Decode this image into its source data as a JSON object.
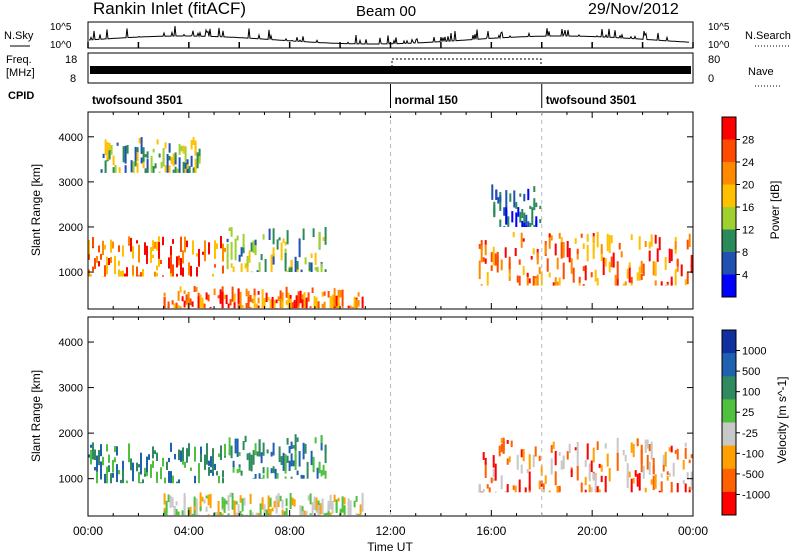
{
  "header": {
    "station": "Rankin Inlet (fitACF)",
    "beam": "Beam 00",
    "date": "29/Nov/2012"
  },
  "time_axis": {
    "label": "Time UT",
    "ticks": [
      "00:00",
      "04:00",
      "08:00",
      "12:00",
      "16:00",
      "20:00",
      "00:00"
    ],
    "range_hours": [
      0,
      24
    ]
  },
  "top_panels": {
    "nsky_label": "N.Sky",
    "nsky_ticks": [
      "10^5",
      "10^0"
    ],
    "nsearch_label": "N.Search",
    "nsearch_ticks": [
      "10^5",
      "10^0"
    ],
    "freq_label_line1": "Freq.",
    "freq_label_line2": "[MHz]",
    "freq_ticks": [
      "18",
      "8"
    ],
    "nave_label": "Nave",
    "nave_ticks": [
      "80",
      "0"
    ],
    "cpid_label": "CPID",
    "cpid_segments": [
      {
        "label": "twofsound 3501",
        "start_hour": 0,
        "end_hour": 12
      },
      {
        "label": "normal 150",
        "start_hour": 12,
        "end_hour": 18
      },
      {
        "label": "twofsound 3501",
        "start_hour": 18,
        "end_hour": 24
      }
    ]
  },
  "chart_data": [
    {
      "type": "heatmap",
      "title": "Power",
      "xlabel": "",
      "ylabel": "Slant Range [km]",
      "xlim": [
        0,
        24
      ],
      "ylim": [
        180,
        4550
      ],
      "y_ticks": [
        1000,
        2000,
        3000,
        4000
      ],
      "colorbar": {
        "label": "Power [dB]",
        "ticks": [
          "28",
          "24",
          "20",
          "16",
          "12",
          "8",
          "4"
        ],
        "colors": [
          "#ff0000",
          "#ff4a00",
          "#ff8a00",
          "#ffc000",
          "#a0d030",
          "#2a8a5a",
          "#2050b0",
          "#0000ff"
        ]
      },
      "echo_regions": [
        {
          "x": [
            0.0,
            5.5
          ],
          "y": [
            900,
            1800
          ],
          "level": "high"
        },
        {
          "x": [
            5.5,
            9.5
          ],
          "y": [
            1000,
            2000
          ],
          "level": "mid"
        },
        {
          "x": [
            3.0,
            11.0
          ],
          "y": [
            200,
            700
          ],
          "level": "high"
        },
        {
          "x": [
            0.5,
            4.5
          ],
          "y": [
            3200,
            4000
          ],
          "level": "mid"
        },
        {
          "x": [
            15.5,
            24.0
          ],
          "y": [
            700,
            1900
          ],
          "level": "high"
        },
        {
          "x": [
            16.0,
            18.0
          ],
          "y": [
            2000,
            3000
          ],
          "level": "low"
        }
      ]
    },
    {
      "type": "heatmap",
      "title": "Velocity",
      "xlabel": "Time UT",
      "ylabel": "Slant Range [km]",
      "xlim": [
        0,
        24
      ],
      "ylim": [
        180,
        4550
      ],
      "y_ticks": [
        1000,
        2000,
        3000,
        4000
      ],
      "colorbar": {
        "label": "Velocity [m s^-1]",
        "ticks": [
          "1000",
          "500",
          "100",
          "25",
          "-25",
          "-100",
          "-500",
          "-1000"
        ],
        "colors": [
          "#1030a0",
          "#2060b0",
          "#308a60",
          "#50c040",
          "#c8c8c8",
          "#ffa000",
          "#ff6000",
          "#ff0000"
        ]
      },
      "echo_regions": [
        {
          "x": [
            0.0,
            5.5
          ],
          "y": [
            900,
            1800
          ],
          "level": "slow-positive"
        },
        {
          "x": [
            5.5,
            9.5
          ],
          "y": [
            1000,
            2000
          ],
          "level": "slow-positive"
        },
        {
          "x": [
            3.0,
            11.0
          ],
          "y": [
            200,
            700
          ],
          "level": "slow-negative"
        },
        {
          "x": [
            15.5,
            24.0
          ],
          "y": [
            700,
            1900
          ],
          "level": "negative"
        }
      ]
    }
  ],
  "colors": {
    "grid_dash": "#bbbbbb",
    "axis": "#000000"
  }
}
